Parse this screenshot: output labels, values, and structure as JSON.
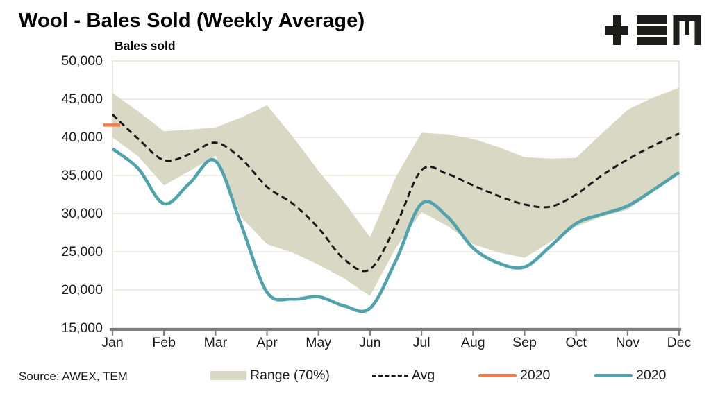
{
  "header": {
    "title": "Wool - Bales Sold (Weekly Average)",
    "logo_name": "TEM"
  },
  "footer": {
    "source": "Source: AWEX, TEM"
  },
  "legend": [
    {
      "label": "Range (70%)",
      "type": "band"
    },
    {
      "label": "Avg",
      "type": "dashed-line"
    },
    {
      "label": "2020",
      "type": "line-orange"
    },
    {
      "label": "2020",
      "type": "line-teal"
    }
  ],
  "colors": {
    "band": "#d8d8c4",
    "avg": "#1a1a1a",
    "line_2020_start": "#ef7d49",
    "line_2020": "#50a2ac",
    "axis": "#7f7f7f",
    "grid": "#e4e4d6",
    "logo": "#1d1d1b"
  },
  "chart_data": {
    "type": "line",
    "title": "Wool - Bales Sold (Weekly Average)",
    "ylabel": "Bales sold",
    "xlabel": "",
    "ylim": [
      15000,
      50000
    ],
    "y_tick_step": 5000,
    "y_tick_labels": [
      "50,000",
      "45,000",
      "40,000",
      "35,000",
      "30,000",
      "25,000",
      "20,000",
      "15,000"
    ],
    "x_categories": [
      "Jan",
      "Feb",
      "Mar",
      "Apr",
      "May",
      "Jun",
      "Jul",
      "Aug",
      "Sep",
      "Oct",
      "Nov",
      "Dec"
    ],
    "grid": true,
    "legend_position": "bottom",
    "x_months": [
      0,
      0.5,
      1,
      1.5,
      2,
      2.5,
      3,
      3.5,
      4,
      4.5,
      5,
      5.5,
      6,
      6.5,
      7,
      7.5,
      8,
      8.5,
      9,
      9.5,
      10,
      10.5,
      11
    ],
    "series": [
      {
        "name": "Range (70%) upper",
        "role": "band-upper",
        "values": [
          45800,
          43400,
          40800,
          41000,
          41300,
          42600,
          44200,
          40100,
          35600,
          31500,
          26900,
          34800,
          40600,
          40400,
          39800,
          38700,
          37400,
          37200,
          37300,
          40500,
          43600,
          45200,
          46500
        ]
      },
      {
        "name": "Range (70%) lower",
        "role": "band-lower",
        "values": [
          40000,
          37500,
          33700,
          35600,
          37600,
          29500,
          26000,
          24900,
          23300,
          21500,
          19200,
          25500,
          30200,
          28400,
          26000,
          24900,
          24200,
          26300,
          28300,
          29600,
          30500,
          32900,
          35300
        ]
      },
      {
        "name": "Avg",
        "role": "avg-dashed",
        "values": [
          43000,
          39800,
          37000,
          37800,
          39300,
          37200,
          33500,
          31300,
          28100,
          24000,
          22700,
          28400,
          35700,
          35200,
          33700,
          32300,
          31200,
          30900,
          32500,
          35000,
          37100,
          38900,
          40500
        ]
      },
      {
        "name": "2020 (year start)",
        "role": "current-start",
        "x": [
          -0.18,
          0.15
        ],
        "values": [
          41600,
          41600
        ]
      },
      {
        "name": "2020",
        "role": "year-line",
        "values": [
          38500,
          35900,
          31300,
          34000,
          36900,
          28500,
          19700,
          18800,
          19100,
          17900,
          17600,
          23800,
          31300,
          29600,
          25500,
          23500,
          23000,
          25700,
          28700,
          29900,
          31000,
          33100,
          35400
        ]
      }
    ]
  }
}
